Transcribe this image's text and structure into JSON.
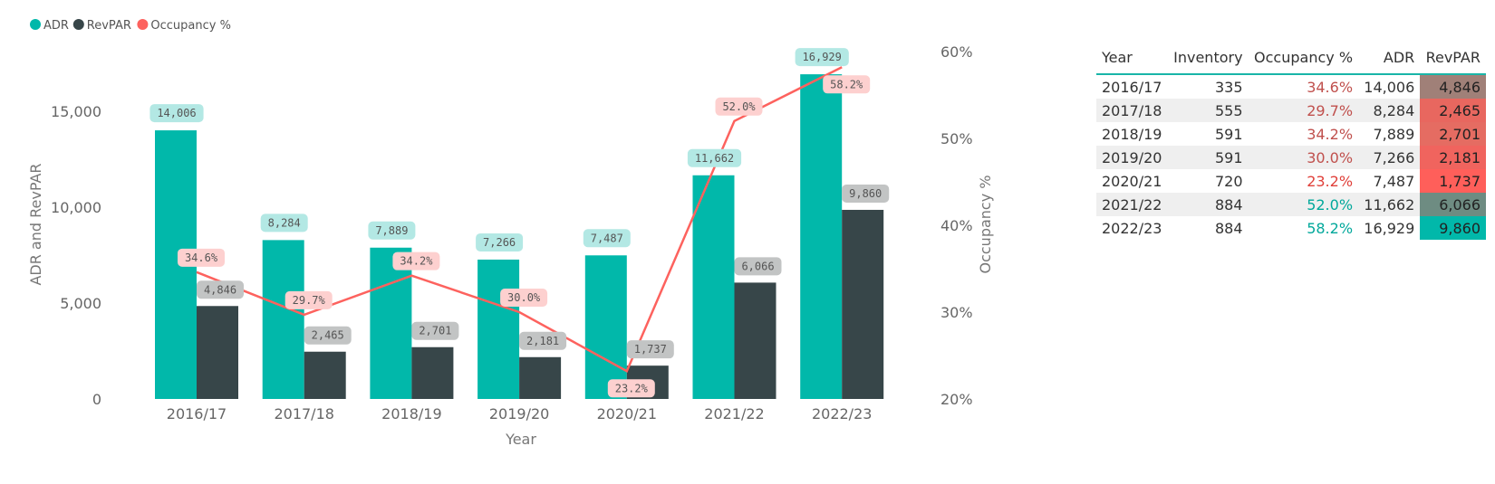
{
  "legend": {
    "items": [
      {
        "label": "ADR",
        "color": "#01b8aa"
      },
      {
        "label": "RevPAR",
        "color": "#374649"
      },
      {
        "label": "Occupancy %",
        "color": "#fd625e"
      }
    ]
  },
  "chart_data": {
    "type": "bar",
    "xlabel": "Year",
    "ylabel": "ADR and RevPAR",
    "y2label": "Occupancy %",
    "ylim": [
      0,
      17500
    ],
    "y_ticks": [
      "0",
      "5,000",
      "10,000",
      "15,000"
    ],
    "y2lim": [
      20,
      60
    ],
    "y2_ticks": [
      "20%",
      "30%",
      "40%",
      "50%",
      "60%"
    ],
    "categories": [
      "2016/17",
      "2017/18",
      "2018/19",
      "2019/20",
      "2020/21",
      "2021/22",
      "2022/23"
    ],
    "series": [
      {
        "name": "ADR",
        "kind": "bar",
        "color": "#01b8aa",
        "values": [
          14006,
          8284,
          7889,
          7266,
          7487,
          11662,
          16929
        ],
        "labels": [
          "14,006",
          "8,284",
          "7,889",
          "7,266",
          "7,487",
          "11,662",
          "16,929"
        ]
      },
      {
        "name": "RevPAR",
        "kind": "bar",
        "color": "#374649",
        "values": [
          4846,
          2465,
          2701,
          2181,
          1737,
          6066,
          9860
        ],
        "labels": [
          "4,846",
          "2,465",
          "2,701",
          "2,181",
          "1,737",
          "6,066",
          "9,860"
        ]
      },
      {
        "name": "Occupancy %",
        "kind": "line",
        "axis": "secondary",
        "color": "#fd625e",
        "values": [
          34.6,
          29.7,
          34.2,
          30.0,
          23.2,
          52.0,
          58.2
        ],
        "labels": [
          "34.6%",
          "29.7%",
          "34.2%",
          "30.0%",
          "23.2%",
          "52.0%",
          "58.2%"
        ]
      }
    ],
    "grid": false,
    "legend_position": "top-left"
  },
  "table": {
    "headers": [
      "Year",
      "Inventory",
      "Occupancy %",
      "ADR",
      "RevPAR"
    ],
    "rows": [
      {
        "year": "2016/17",
        "inventory": "335",
        "occupancy": "34.6%",
        "adr": "14,006",
        "revpar": "4,846",
        "occ_color": "#c0504d",
        "revpar_bg": "#a08078"
      },
      {
        "year": "2017/18",
        "inventory": "555",
        "occupancy": "29.7%",
        "adr": "8,284",
        "revpar": "2,465",
        "occ_color": "#c0504d",
        "revpar_bg": "#e8675f"
      },
      {
        "year": "2018/19",
        "inventory": "591",
        "occupancy": "34.2%",
        "adr": "7,889",
        "revpar": "2,701",
        "occ_color": "#c0504d",
        "revpar_bg": "#e56c62"
      },
      {
        "year": "2019/20",
        "inventory": "591",
        "occupancy": "30.0%",
        "adr": "7,266",
        "revpar": "2,181",
        "occ_color": "#c0504d",
        "revpar_bg": "#f0645e"
      },
      {
        "year": "2020/21",
        "inventory": "720",
        "occupancy": "23.2%",
        "adr": "7,487",
        "revpar": "1,737",
        "occ_color": "#e0403a",
        "revpar_bg": "#ff5f5a"
      },
      {
        "year": "2021/22",
        "inventory": "884",
        "occupancy": "52.0%",
        "adr": "11,662",
        "revpar": "6,066",
        "occ_color": "#01a89b",
        "revpar_bg": "#6e8c82"
      },
      {
        "year": "2022/23",
        "inventory": "884",
        "occupancy": "58.2%",
        "adr": "16,929",
        "revpar": "9,860",
        "occ_color": "#01a89b",
        "revpar_bg": "#01b8aa"
      }
    ]
  }
}
